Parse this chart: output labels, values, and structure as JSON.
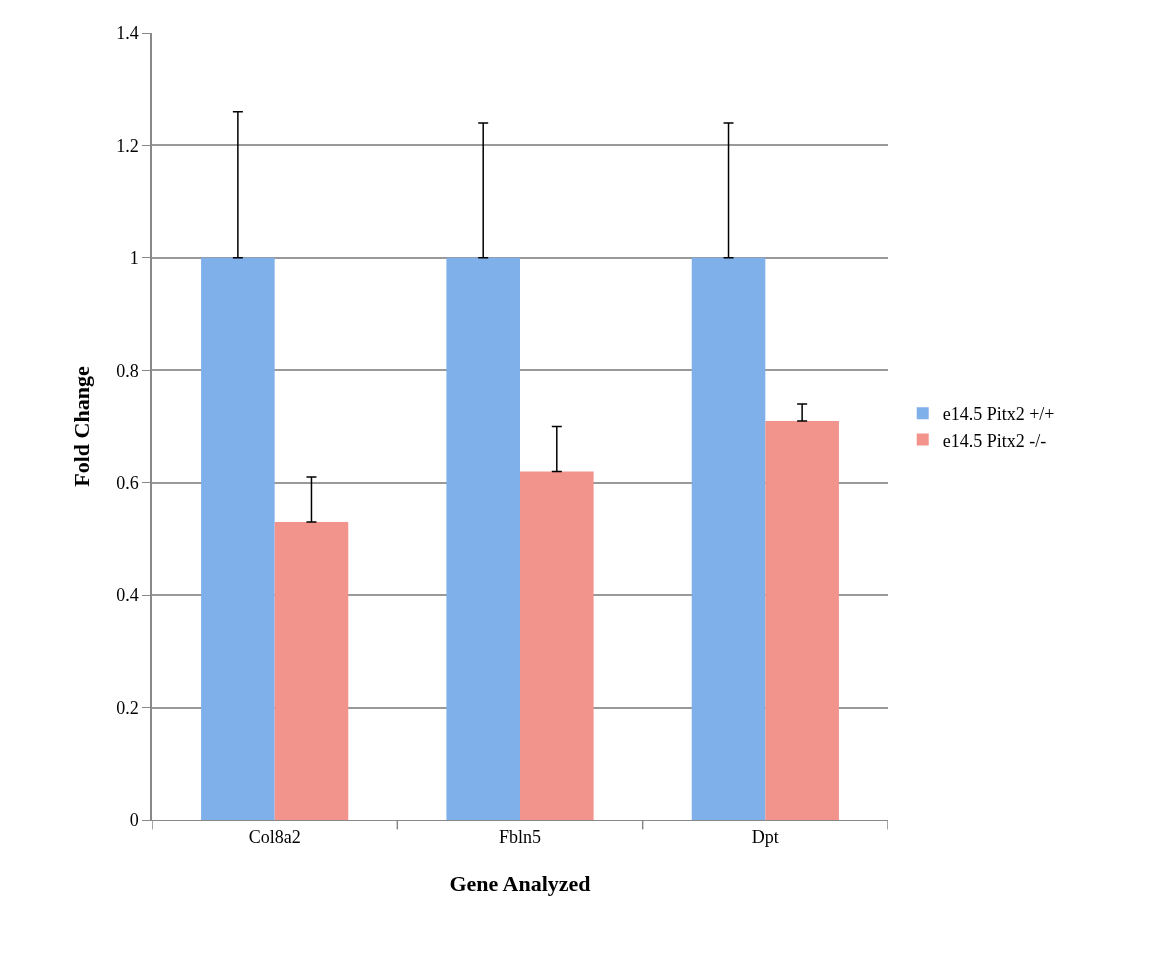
{
  "chart_data": {
    "type": "bar",
    "xlabel": "Gene Analyzed",
    "ylabel": "Fold Change",
    "categories": [
      "Col8a2",
      "Fbln5",
      "Dpt"
    ],
    "series": [
      {
        "name": "e14.5 Pitx2 +/+",
        "color": "#80b0ea",
        "values": [
          1,
          1,
          1
        ],
        "errors": [
          [
            1,
            1.26
          ],
          [
            1,
            1.24
          ],
          [
            1,
            1.24
          ]
        ]
      },
      {
        "name": "e14.5 Pitx2 -/-",
        "color": "#f2938c",
        "values": [
          0.53,
          0.62,
          0.71
        ],
        "errors": [
          [
            0.53,
            0.61
          ],
          [
            0.62,
            0.7
          ],
          [
            0.71,
            0.74
          ]
        ]
      }
    ],
    "ylim": [
      0,
      1.4
    ],
    "yticks": [
      0,
      0.2,
      0.4,
      0.6,
      0.8,
      1,
      1.2,
      1.4
    ],
    "grid": "y",
    "legend": "right"
  }
}
